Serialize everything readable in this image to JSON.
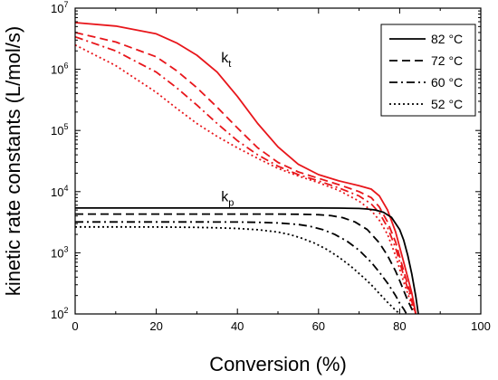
{
  "chart_data": {
    "type": "line",
    "xlabel": "Conversion (%)",
    "ylabel": "kinetic rate constants (L/mol/s)",
    "xlim": [
      0,
      100
    ],
    "ylim": [
      100,
      10000000
    ],
    "yscale": "log",
    "grid": false,
    "legend": {
      "position": "top-right",
      "entries": [
        "82 °C",
        "72 °C",
        "60 °C",
        "52 °C"
      ]
    },
    "x_ticks": [
      "0",
      "20",
      "40",
      "60",
      "80",
      "100"
    ],
    "y_ticks": [
      {
        "base": "10",
        "exp": "2"
      },
      {
        "base": "10",
        "exp": "3"
      },
      {
        "base": "10",
        "exp": "4"
      },
      {
        "base": "10",
        "exp": "5"
      },
      {
        "base": "10",
        "exp": "6"
      },
      {
        "base": "10",
        "exp": "7"
      }
    ],
    "annotations": [
      {
        "base": "k",
        "sub": "t",
        "x": 36,
        "y": 1300000
      },
      {
        "base": "k",
        "sub": "p",
        "x": 36,
        "y": 7000
      }
    ],
    "series": [
      {
        "group": "kt",
        "legend": "82 °C",
        "color": "#e8161b",
        "dash": "solid",
        "x": [
          0,
          10,
          20,
          25,
          30,
          35,
          40,
          45,
          50,
          55,
          60,
          65,
          70,
          73,
          75,
          77,
          79,
          81,
          83,
          84
        ],
        "y": [
          5800000,
          5100000,
          3800000,
          2700000,
          1700000,
          900000,
          360000,
          130000,
          54000,
          28000,
          19000,
          15000,
          12500,
          11000,
          8500,
          5000,
          2200,
          700,
          220,
          100
        ]
      },
      {
        "group": "kt",
        "legend": "72 °C",
        "color": "#e8161b",
        "dash": "dashed",
        "x": [
          0,
          10,
          20,
          25,
          30,
          35,
          40,
          45,
          50,
          55,
          60,
          65,
          70,
          73,
          75,
          77,
          79,
          81,
          83,
          84
        ],
        "y": [
          4000000,
          2800000,
          1600000,
          950000,
          500000,
          240000,
          110000,
          52000,
          30000,
          21000,
          16500,
          13000,
          10000,
          8000,
          5600,
          3200,
          1500,
          500,
          180,
          100
        ]
      },
      {
        "group": "kt",
        "legend": "60 °C",
        "color": "#e8161b",
        "dash": "dashdot",
        "x": [
          0,
          10,
          20,
          25,
          30,
          35,
          40,
          45,
          50,
          55,
          60,
          65,
          70,
          73,
          75,
          77,
          79,
          81,
          83,
          84
        ],
        "y": [
          3400000,
          2000000,
          900000,
          500000,
          260000,
          130000,
          68000,
          40000,
          26000,
          19000,
          15000,
          11500,
          8500,
          6300,
          4500,
          2600,
          1200,
          420,
          160,
          100
        ]
      },
      {
        "group": "kt",
        "legend": "52 °C",
        "color": "#e8161b",
        "dash": "dotted",
        "x": [
          0,
          10,
          20,
          25,
          30,
          35,
          40,
          45,
          50,
          55,
          60,
          65,
          70,
          73,
          75,
          77,
          79,
          81,
          83,
          84
        ],
        "y": [
          2500000,
          1150000,
          420000,
          230000,
          130000,
          80000,
          52000,
          35000,
          24000,
          18000,
          14000,
          10500,
          7000,
          4900,
          3400,
          2000,
          900,
          330,
          140,
          100
        ]
      },
      {
        "group": "kp",
        "legend": "82 °C",
        "color": "#000000",
        "dash": "solid",
        "x": [
          0,
          10,
          20,
          30,
          40,
          50,
          55,
          60,
          65,
          70,
          72,
          74,
          76,
          78,
          80,
          81,
          82,
          83,
          84,
          84.6
        ],
        "y": [
          5400,
          5400,
          5400,
          5400,
          5400,
          5400,
          5400,
          5400,
          5380,
          5300,
          5200,
          5000,
          4600,
          3800,
          2400,
          1600,
          900,
          450,
          190,
          100
        ]
      },
      {
        "group": "kp",
        "legend": "72 °C",
        "color": "#000000",
        "dash": "dashed",
        "x": [
          0,
          10,
          20,
          30,
          40,
          50,
          55,
          60,
          63,
          66,
          69,
          72,
          75,
          77,
          79,
          80,
          81,
          82,
          83,
          83.7
        ],
        "y": [
          4300,
          4300,
          4300,
          4300,
          4300,
          4290,
          4270,
          4200,
          4050,
          3750,
          3200,
          2400,
          1450,
          900,
          500,
          350,
          240,
          165,
          120,
          100
        ]
      },
      {
        "group": "kp",
        "legend": "60 °C",
        "color": "#000000",
        "dash": "dashdot",
        "x": [
          0,
          10,
          20,
          30,
          40,
          45,
          50,
          55,
          58,
          61,
          64,
          67,
          70,
          73,
          75,
          77,
          79,
          80,
          81,
          81.7
        ],
        "y": [
          3200,
          3200,
          3200,
          3200,
          3180,
          3150,
          3080,
          2900,
          2700,
          2400,
          2000,
          1550,
          1100,
          700,
          480,
          320,
          200,
          150,
          120,
          100
        ]
      },
      {
        "group": "kp",
        "legend": "52 °C",
        "color": "#000000",
        "dash": "dotted",
        "x": [
          0,
          10,
          20,
          30,
          35,
          40,
          45,
          50,
          53,
          56,
          59,
          62,
          65,
          68,
          71,
          73,
          75,
          77,
          79,
          80
        ],
        "y": [
          2650,
          2650,
          2640,
          2600,
          2560,
          2500,
          2380,
          2180,
          1980,
          1720,
          1440,
          1140,
          850,
          600,
          400,
          300,
          215,
          155,
          115,
          100
        ]
      }
    ]
  }
}
